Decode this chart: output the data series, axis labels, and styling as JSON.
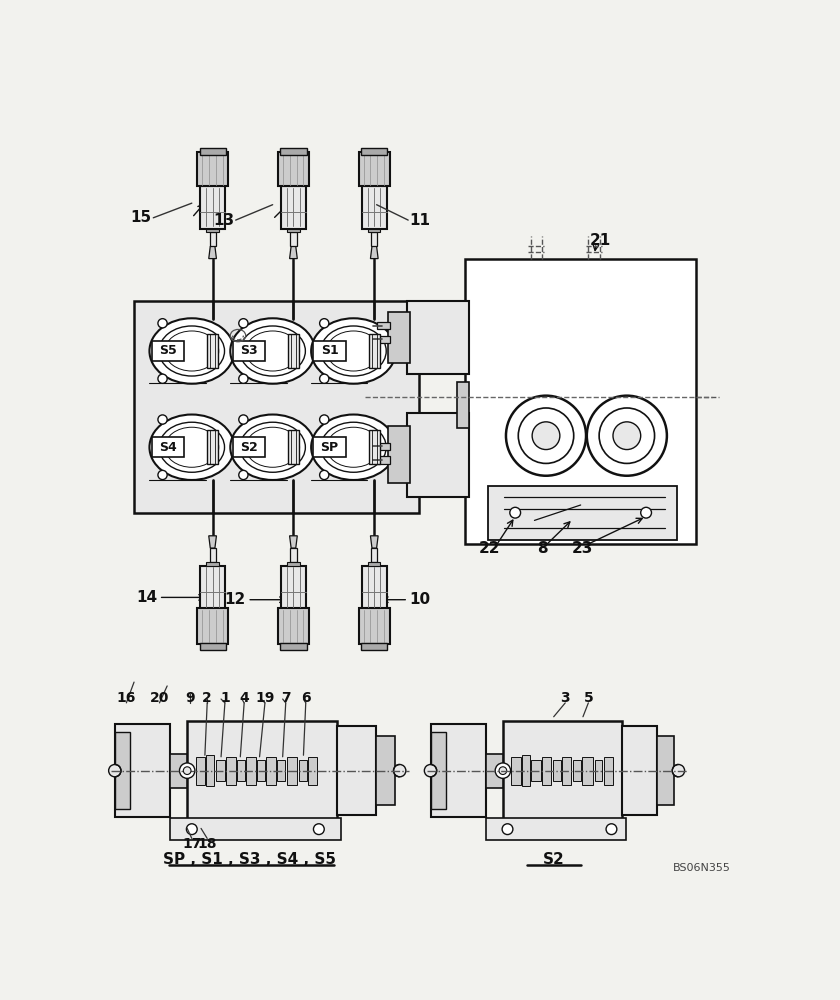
{
  "bg_color": "#f2f2ee",
  "line_color": "#111111",
  "lw": 1.3,
  "label_sp_s1": "SP , S1 , S3 , S4 , S5",
  "label_s2": "S2",
  "code": "BS06N355"
}
